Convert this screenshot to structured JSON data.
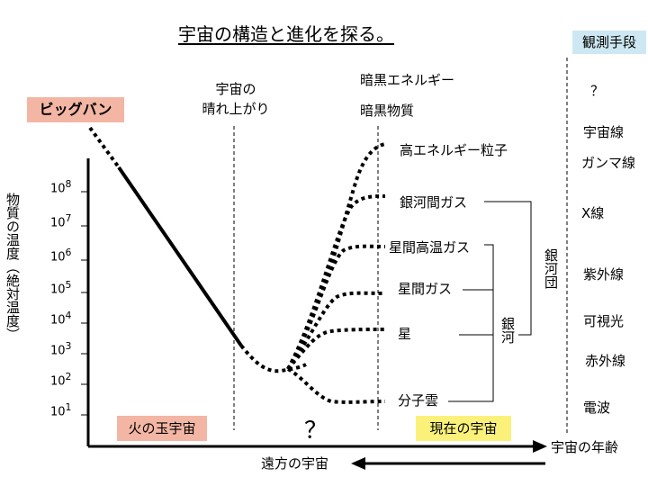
{
  "title": "宇宙の構造と進化を探る。",
  "observation": {
    "header": "観測手段",
    "items": [
      "？",
      "宇宙線",
      "ガンマ線",
      "X線",
      "紫外線",
      "可視光",
      "赤外線",
      "電波"
    ]
  },
  "big_bang": "ビッグバン",
  "clear_up": [
    "宇宙の",
    "晴れ上がり"
  ],
  "dark": [
    "暗黒エネルギー",
    "暗黒物質"
  ],
  "y_axis_label": "物質の温度（絶対温度）",
  "y_ticks": [
    {
      "base": "10",
      "exp": "8"
    },
    {
      "base": "10",
      "exp": "7"
    },
    {
      "base": "10",
      "exp": "6"
    },
    {
      "base": "10",
      "exp": "5"
    },
    {
      "base": "10",
      "exp": "4"
    },
    {
      "base": "10",
      "exp": "3"
    },
    {
      "base": "10",
      "exp": "2"
    },
    {
      "base": "10",
      "exp": "1"
    }
  ],
  "components": [
    "高エネルギー粒子",
    "銀河間ガス",
    "星間高温ガス",
    "星間ガス",
    "星",
    "分子雲"
  ],
  "group_galaxy": "銀河",
  "group_cluster": "銀河団",
  "fireball": "火の玉宇宙",
  "question": "？",
  "present": "現在の宇宙",
  "x_axis_label": "宇宙の年齢",
  "distant": "遠方の宇宙"
}
